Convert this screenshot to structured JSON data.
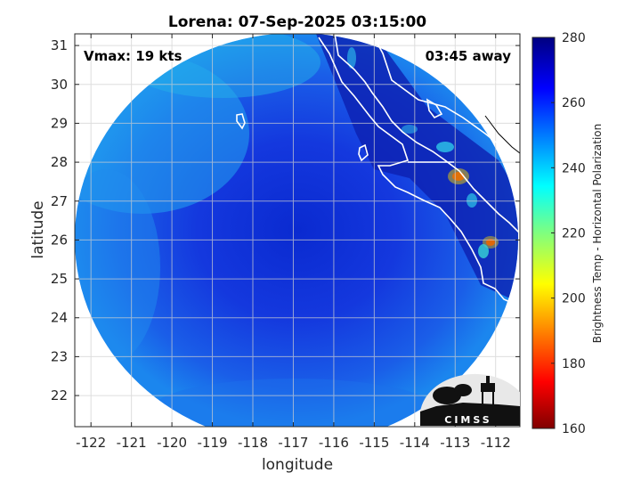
{
  "title": "Lorena: 07-Sep-2025 03:15:00",
  "annotations": {
    "vmax": "Vmax: 19 kts",
    "time_away": "03:45 away"
  },
  "logo_text": "CIMSS",
  "colorbar": {
    "label": "Brightness Temp - Horizontal Polarization",
    "min": 160,
    "max": 280,
    "ticks": [
      160,
      180,
      200,
      220,
      240,
      260,
      280
    ],
    "colormap": "jet"
  },
  "chart_data": {
    "type": "heatmap",
    "title": "Lorena: 07-Sep-2025 03:15:00",
    "xlabel": "longitude",
    "ylabel": "latitude",
    "xlim": [
      -122.4,
      -111.4
    ],
    "ylim": [
      21.2,
      31.3
    ],
    "x_ticks": [
      -122,
      -121,
      -120,
      -119,
      -118,
      -117,
      -116,
      -115,
      -114,
      -113,
      -112
    ],
    "y_ticks": [
      22,
      23,
      24,
      25,
      26,
      27,
      28,
      29,
      30,
      31
    ],
    "grid": true,
    "swath": {
      "center_lon": -117.3,
      "center_lat": 26.2,
      "radius_deg": 5.3,
      "background_value": 258
    },
    "features": [
      {
        "lon": -118.0,
        "lat": 25.5,
        "value": 266
      },
      {
        "lon": -117.0,
        "lat": 26.5,
        "value": 262
      },
      {
        "lon": -113.1,
        "lat": 27.6,
        "value": 188
      },
      {
        "lon": -112.0,
        "lat": 25.9,
        "value": 192
      },
      {
        "lon": -113.5,
        "lat": 28.3,
        "value": 255
      }
    ]
  }
}
